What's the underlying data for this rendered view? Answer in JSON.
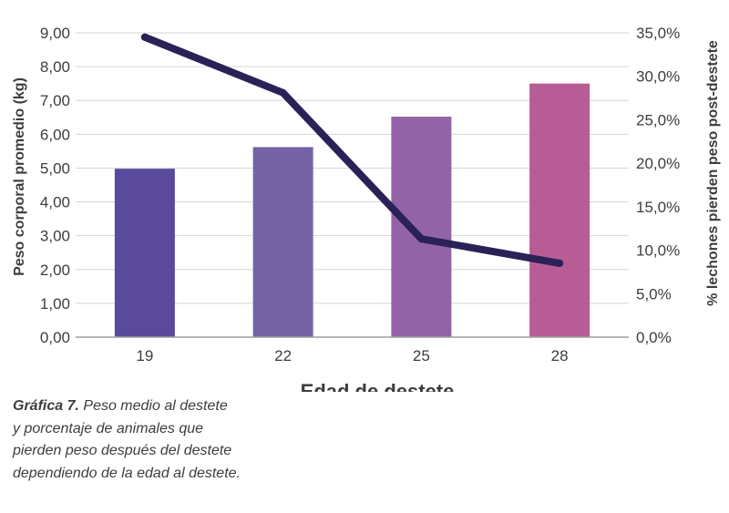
{
  "chart_data": {
    "type": "bar",
    "categories": [
      "19",
      "22",
      "25",
      "28"
    ],
    "xlabel": "Edad de destete",
    "ylabel": "Peso corporal promedio (kg)",
    "ylabel_right": "% lechones pierden peso post-destete",
    "ylim": [
      0,
      9
    ],
    "ylim_right": [
      0,
      35
    ],
    "yticks": [
      "0,00",
      "1,00",
      "2,00",
      "3,00",
      "4,00",
      "5,00",
      "6,00",
      "7,00",
      "8,00",
      "9,00"
    ],
    "yticks_right": [
      "0,0%",
      "5,0%",
      "10,0%",
      "15,0%",
      "20,0%",
      "25,0%",
      "30,0%",
      "35,0%"
    ],
    "grid": true,
    "series": [
      {
        "type": "bar",
        "axis": "left",
        "values": [
          4.98,
          5.62,
          6.52,
          7.5
        ],
        "colors": [
          "#5a4a9c",
          "#7562a4",
          "#9263a6",
          "#b85c95"
        ]
      },
      {
        "type": "line",
        "axis": "right",
        "values": [
          34.5,
          28.1,
          11.3,
          8.5
        ],
        "color": "#2a2157"
      }
    ]
  },
  "caption": {
    "lead": "Gráfica 7.",
    "lines": [
      "Peso medio al destete",
      "y porcentaje de animales que",
      "pierden peso después del destete",
      "dependiendo de la edad al destete."
    ]
  }
}
